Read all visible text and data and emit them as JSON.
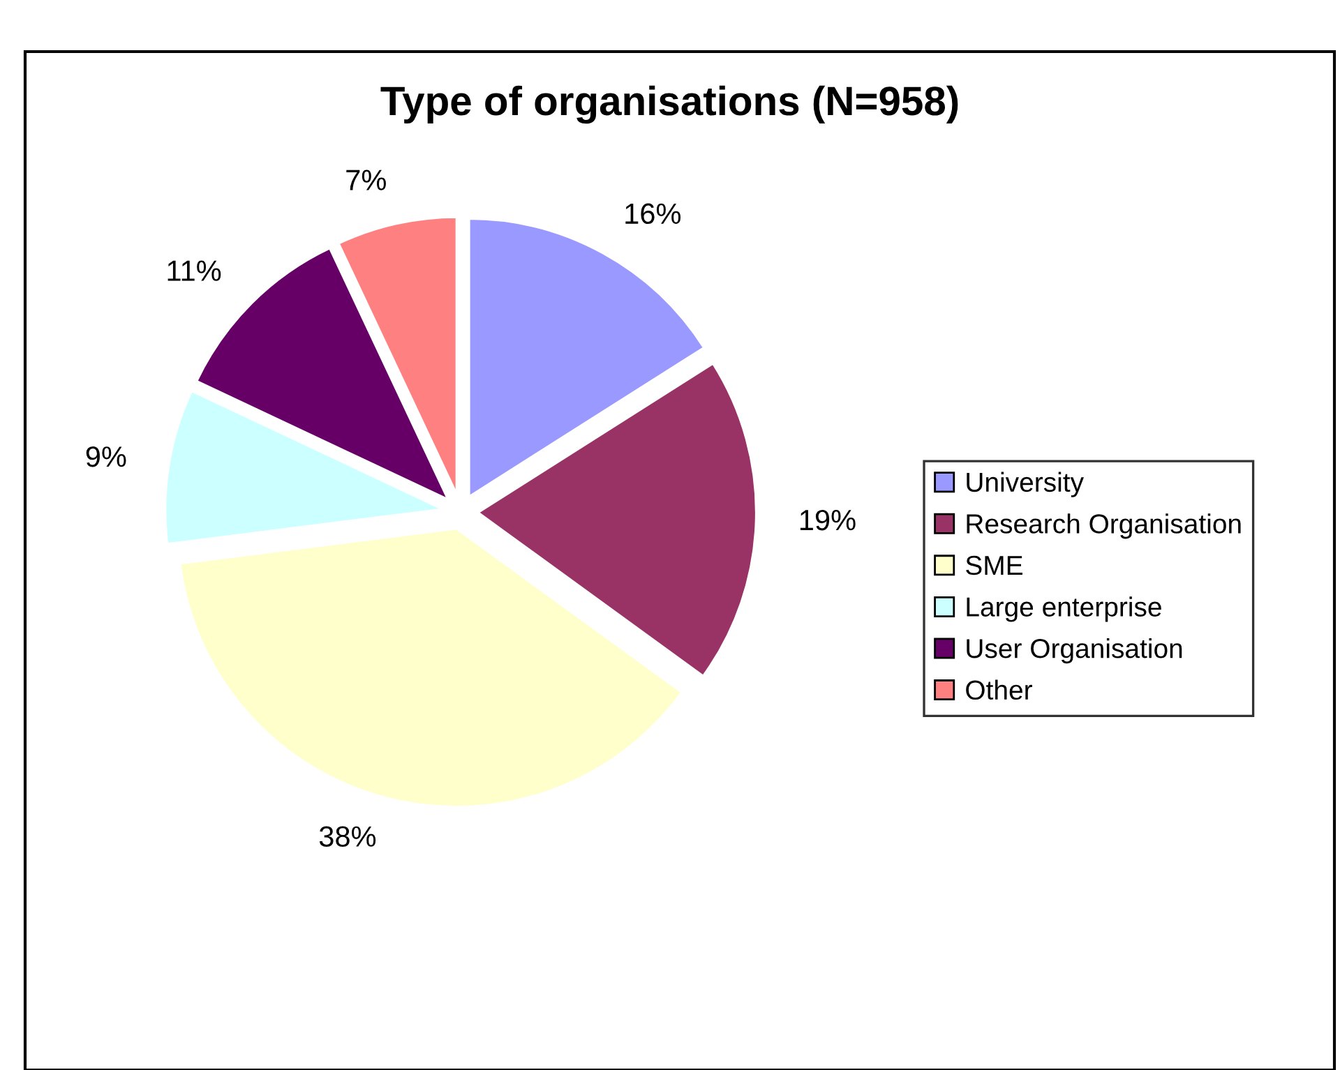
{
  "chart_data": {
    "type": "pie",
    "title": "Type of organisations (N=958)",
    "categories": [
      "University",
      "Research Organisation",
      "SME",
      "Large enterprise",
      "User Organisation",
      "Other"
    ],
    "values": [
      16,
      19,
      38,
      9,
      11,
      7
    ],
    "colors": [
      "#9999ff",
      "#993366",
      "#ffffcc",
      "#ccffff",
      "#660066",
      "#ff8080"
    ],
    "value_labels": [
      "16%",
      "19%",
      "38%",
      "9%",
      "11%",
      "7%"
    ],
    "legend": "right"
  }
}
